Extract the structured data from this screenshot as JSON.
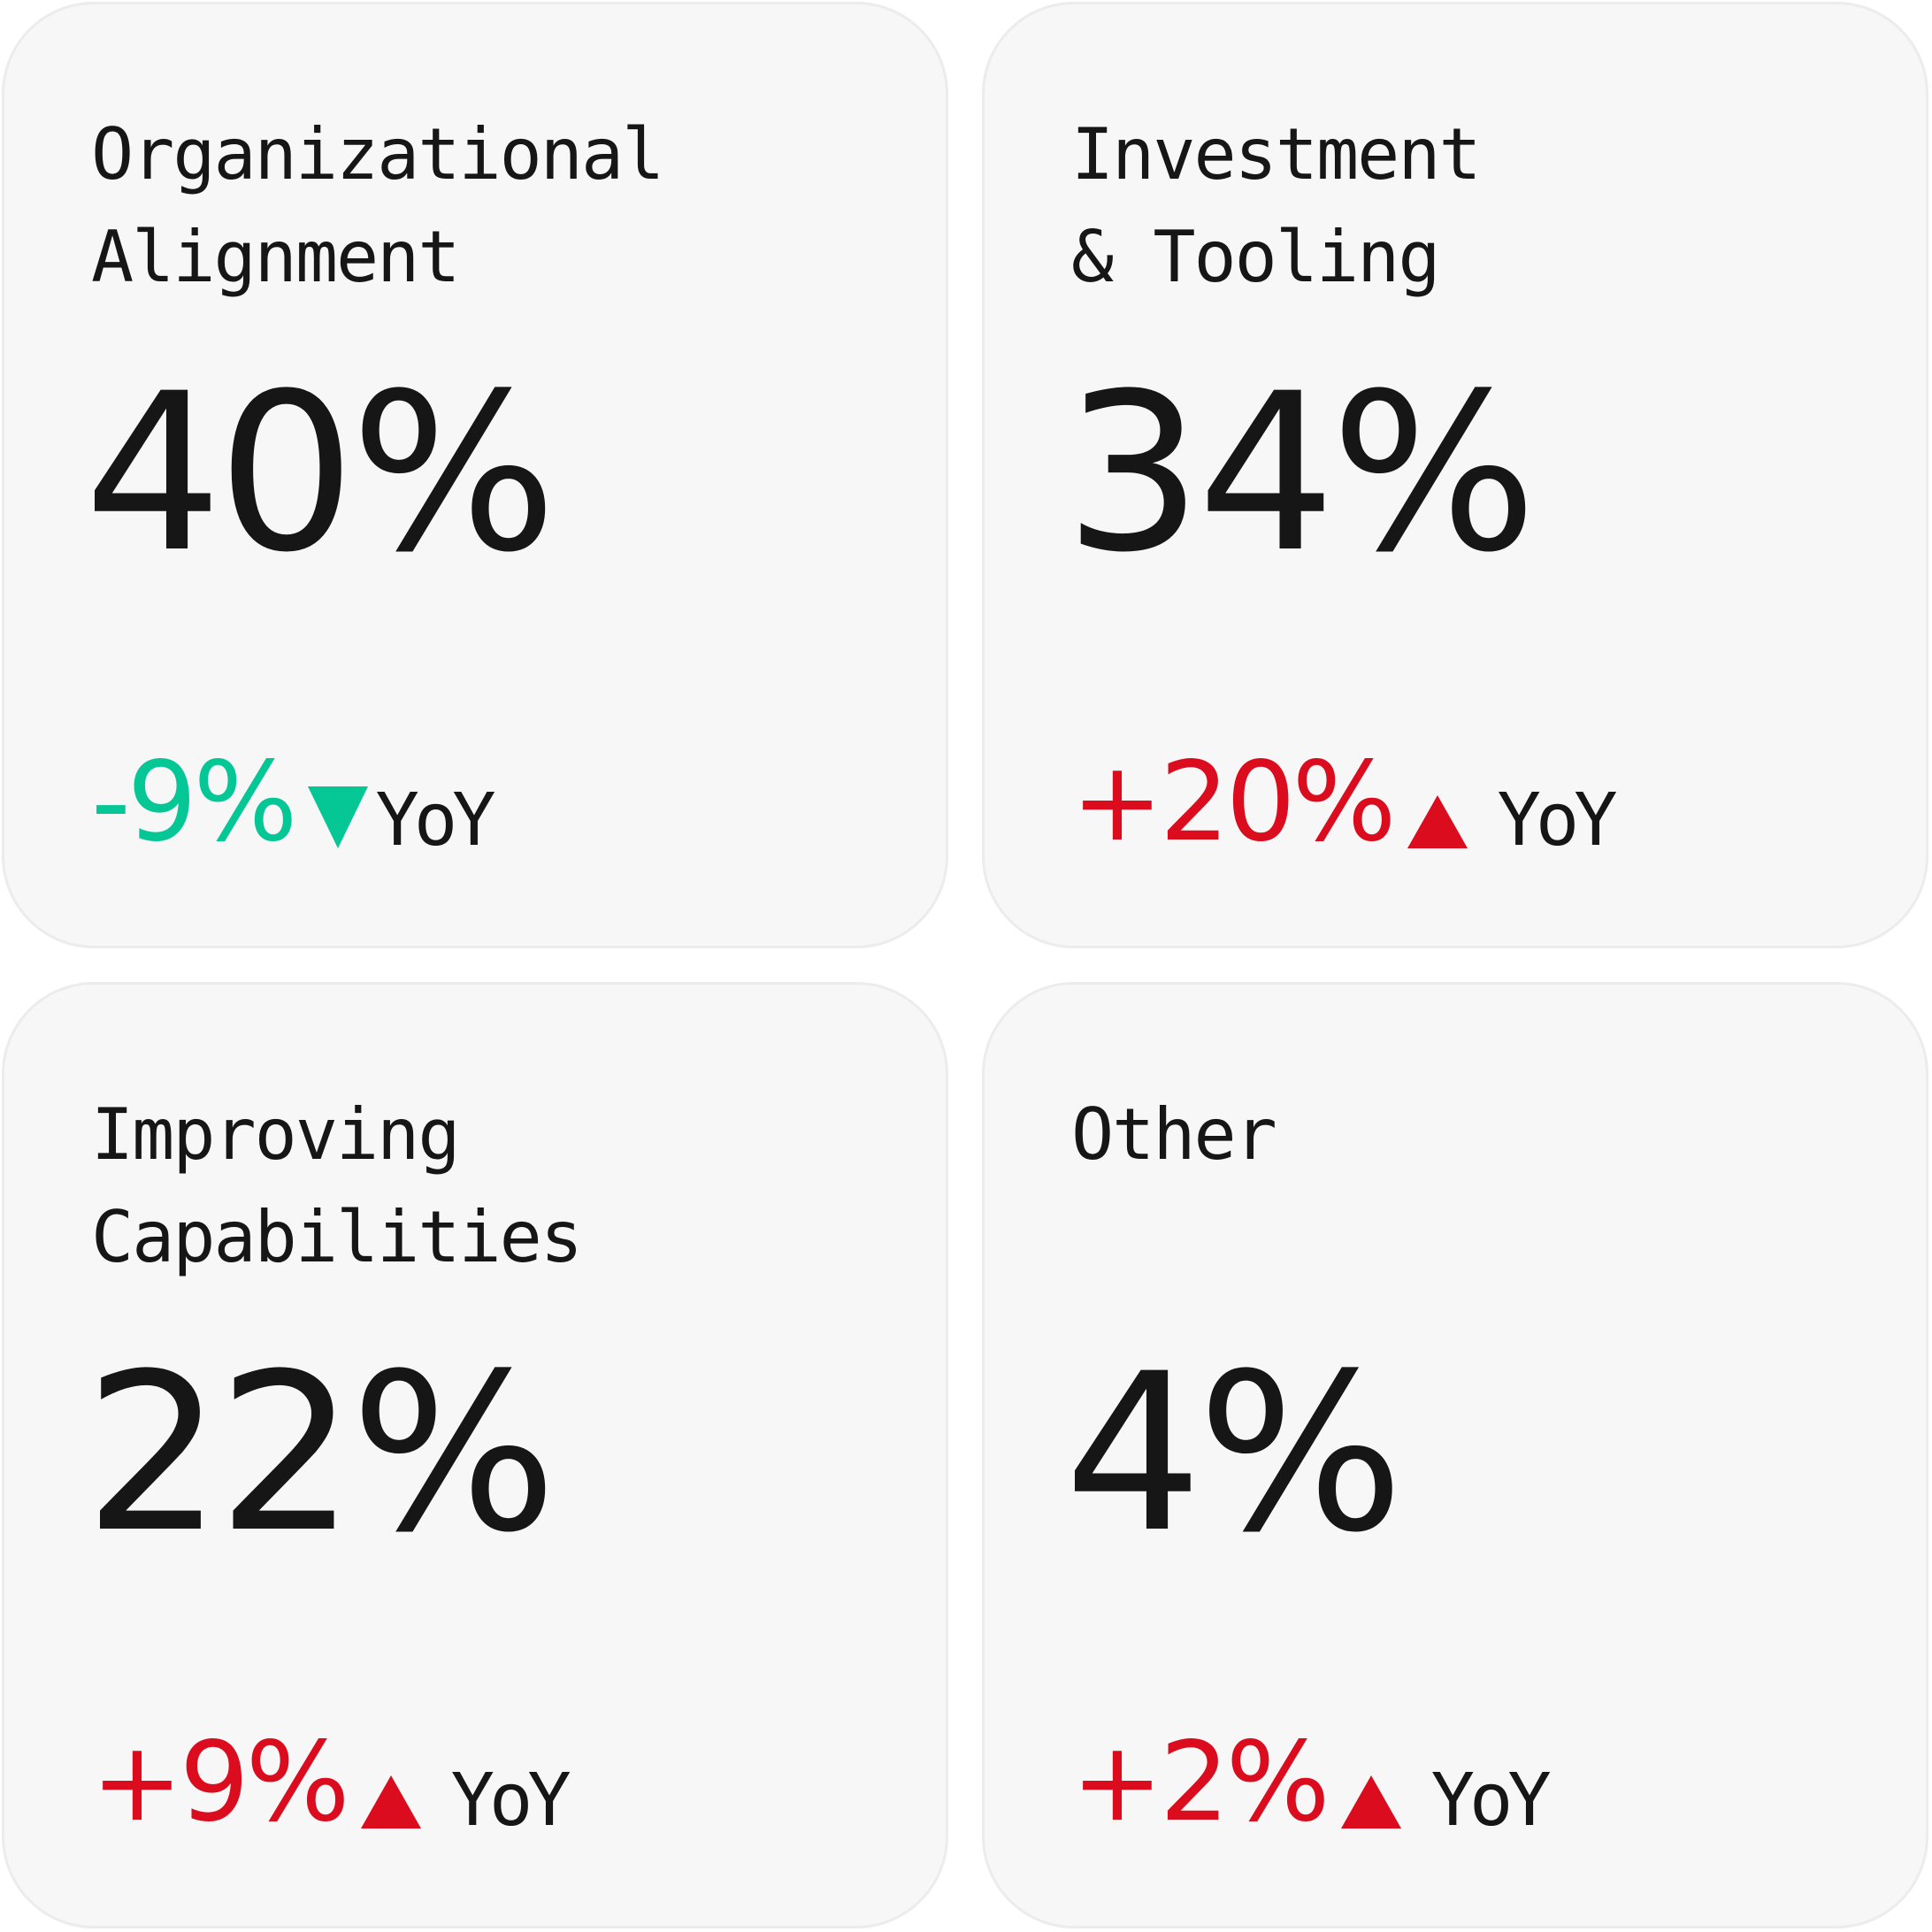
{
  "colors": {
    "card_background": "#f7f7f7",
    "card_border": "#ececec",
    "text_primary": "#161616",
    "positive_change": "#da0c1e",
    "negative_change": "#05c795"
  },
  "cards": [
    {
      "title_lines": [
        "Organizational",
        "Alignment"
      ],
      "value": "40%",
      "change": "-9%",
      "direction": "down",
      "direction_icon": "triangle-down-icon",
      "change_color": "#05c795",
      "period": "YoY"
    },
    {
      "title_lines": [
        "Investment",
        "& Tooling"
      ],
      "value": "34%",
      "change": "+20%",
      "direction": "up",
      "direction_icon": "triangle-up-icon",
      "change_color": "#da0c1e",
      "period": "YoY"
    },
    {
      "title_lines": [
        "Improving",
        "Capabilities"
      ],
      "value": "22%",
      "change": "+9%",
      "direction": "up",
      "direction_icon": "triangle-up-icon",
      "change_color": "#da0c1e",
      "period": "YoY"
    },
    {
      "title_lines": [
        "Other"
      ],
      "value": "4%",
      "change": "+2%",
      "direction": "up",
      "direction_icon": "triangle-up-icon",
      "change_color": "#da0c1e",
      "period": "YoY"
    }
  ]
}
